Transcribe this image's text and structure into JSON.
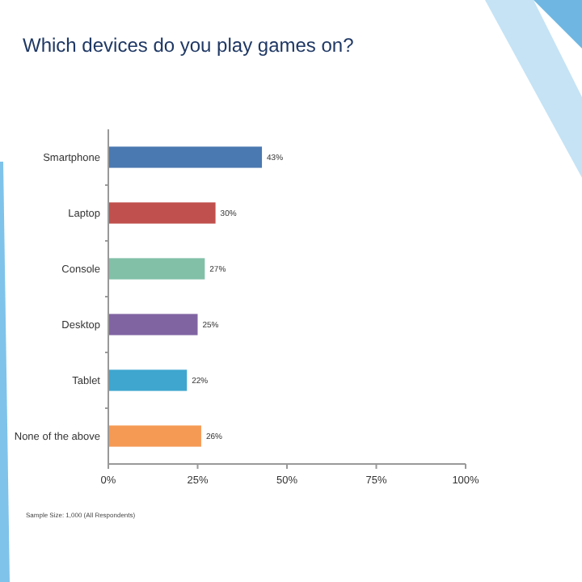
{
  "chart_data": {
    "type": "bar",
    "orientation": "horizontal",
    "title": "Which devices do you play games on?",
    "categories": [
      "Smartphone",
      "Laptop",
      "Console",
      "Desktop",
      "Tablet",
      "None of the above"
    ],
    "values": [
      43,
      30,
      27,
      25,
      22,
      26
    ],
    "colors": [
      "#4a78b0",
      "#c0504d",
      "#82c0a8",
      "#8064a2",
      "#3ea6cf",
      "#f59a54"
    ],
    "value_labels": [
      "43%",
      "30%",
      "27%",
      "25%",
      "22%",
      "26%"
    ],
    "xlim": [
      0,
      100
    ],
    "xticks": [
      {
        "value": 0,
        "label": "0%"
      },
      {
        "value": 25,
        "label": "25%"
      },
      {
        "value": 50,
        "label": "50%"
      },
      {
        "value": 75,
        "label": "75%"
      },
      {
        "value": 100,
        "label": "100%"
      }
    ],
    "annotations": [
      "Sample Size: 1,000 (All Respondents)"
    ]
  }
}
